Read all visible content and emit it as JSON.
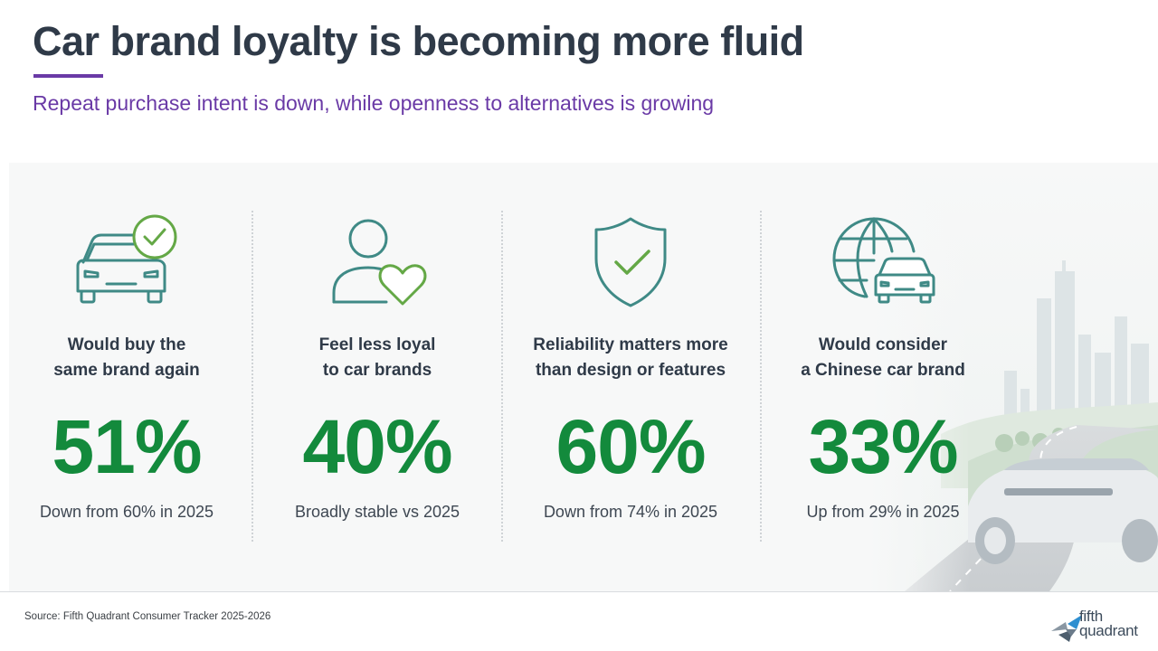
{
  "slide": {
    "title": "Car brand loyalty is becoming more fluid",
    "subtitle": "Repeat purchase intent is down, while openness to alternatives is growing",
    "accent_color": "#6a3aa6",
    "title_color": "#2f3a48",
    "stat_color": "#138a3c",
    "icon_color": "#3f8a86"
  },
  "stats": [
    {
      "icon": "car-check-icon",
      "label_line1": "Would buy the",
      "label_line2": "same brand again",
      "value": "51%",
      "note": "Down from 60% in 2025"
    },
    {
      "icon": "person-heart-icon",
      "label_line1": "Feel less loyal",
      "label_line2": "to car brands",
      "value": "40%",
      "note": "Broadly stable vs 2025"
    },
    {
      "icon": "shield-check-icon",
      "label_line1": "Reliability matters more",
      "label_line2": "than design or features",
      "value": "60%",
      "note": "Down from 74% in 2025"
    },
    {
      "icon": "globe-car-icon",
      "label_line1": "Would consider",
      "label_line2": "a Chinese car brand",
      "value": "33%",
      "note": "Up from 29% in 2025"
    }
  ],
  "footer": {
    "source": "Source: Fifth Quadrant Consumer Tracker 2025-2026",
    "logo_line1": "fifth",
    "logo_line2": "quadrant"
  }
}
